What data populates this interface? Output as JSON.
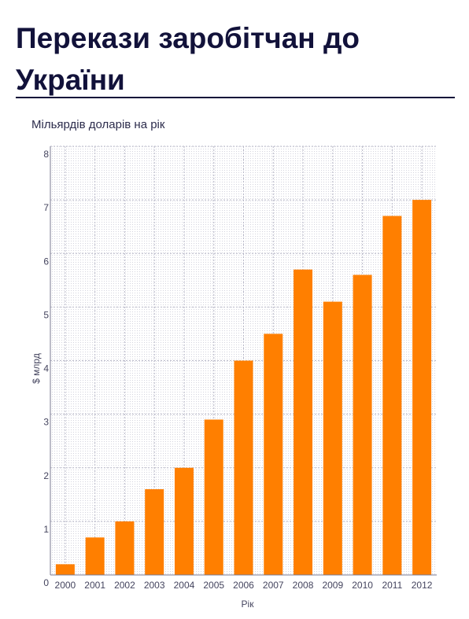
{
  "header": {
    "title": "Перекази заробітчан до України",
    "subtitle": "Мільярдів доларів на рік"
  },
  "colors": {
    "bar": "#ff7f00",
    "grid": "#b8b8c8",
    "text": "#12123a"
  },
  "chart_data": {
    "type": "bar",
    "title": "Перекази заробітчан до України",
    "subtitle": "Мільярдів доларів на рік",
    "xlabel": "Рік",
    "ylabel": "$ млрд",
    "categories": [
      "2000",
      "2001",
      "2002",
      "2003",
      "2004",
      "2005",
      "2006",
      "2007",
      "2008",
      "2009",
      "2010",
      "2011",
      "2012"
    ],
    "values": [
      0.2,
      0.7,
      1.0,
      1.6,
      2.0,
      2.9,
      4.0,
      4.5,
      5.7,
      5.1,
      5.6,
      6.7,
      7.0
    ],
    "ylim": [
      0,
      8
    ],
    "yticks": [
      "0",
      "1",
      "2",
      "3",
      "4",
      "5",
      "6",
      "7",
      "8"
    ],
    "grid": true,
    "legend": "none"
  }
}
